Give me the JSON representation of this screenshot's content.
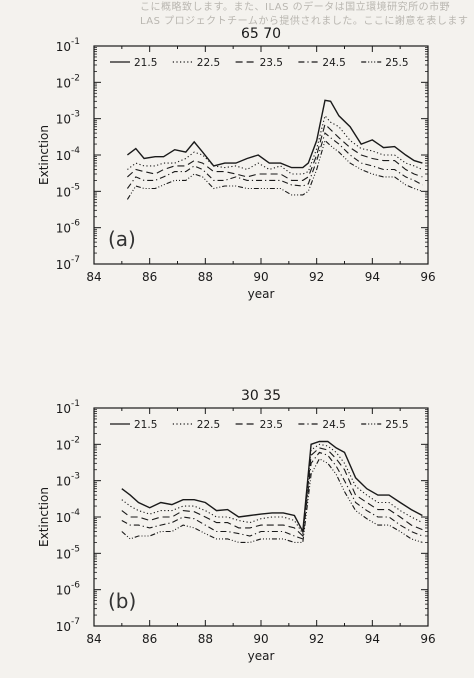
{
  "bleed_text": [
    "こに概略致します。また、ILAS のデータは国立環境研究所の市野",
    "LAS プロジェクトチームから提供されました。ここに謝意を表します"
  ],
  "chart_data": [
    {
      "type": "line",
      "title": "65 70",
      "annotation": "(a)",
      "xlabel": "year",
      "ylabel": "Extinction",
      "xlim": [
        84,
        96
      ],
      "ylim": [
        1e-07,
        0.1
      ],
      "yscale": "log",
      "xticks": [
        "84",
        "86",
        "88",
        "90",
        "92",
        "94",
        "96"
      ],
      "yticks": [
        {
          "base": "10",
          "exp": "-1"
        },
        {
          "base": "10",
          "exp": "-2"
        },
        {
          "base": "10",
          "exp": "-3"
        },
        {
          "base": "10",
          "exp": "-4"
        },
        {
          "base": "10",
          "exp": "-5"
        },
        {
          "base": "10",
          "exp": "-6"
        },
        {
          "base": "10",
          "exp": "-7"
        }
      ],
      "legend_position": "top",
      "x": [
        85.2,
        85.5,
        85.8,
        86.2,
        86.5,
        86.9,
        87.3,
        87.6,
        87.9,
        88.3,
        88.7,
        89.1,
        89.5,
        89.9,
        90.3,
        90.7,
        91.1,
        91.5,
        91.7,
        92.0,
        92.3,
        92.5,
        92.8,
        93.2,
        93.6,
        94.0,
        94.4,
        94.8,
        95.2,
        95.5,
        95.8
      ],
      "series": [
        {
          "name": "21.5",
          "dash": "",
          "values": [
            0.0001,
            0.00015,
            8e-05,
            9e-05,
            9e-05,
            0.00014,
            0.00012,
            0.00023,
            0.00012,
            5e-05,
            6e-05,
            6e-05,
            8e-05,
            0.0001,
            6e-05,
            6e-05,
            4.5e-05,
            4.5e-05,
            6e-05,
            0.00025,
            0.0032,
            0.003,
            0.0012,
            0.0006,
            0.0002,
            0.00026,
            0.00016,
            0.00017,
            0.0001,
            7e-05,
            6e-05
          ]
        },
        {
          "name": "22.5",
          "dash": "1.2 2.4",
          "values": [
            4e-05,
            6e-05,
            5e-05,
            5e-05,
            6e-05,
            6e-05,
            8e-05,
            0.00012,
            0.0001,
            5e-05,
            4.5e-05,
            5e-05,
            4e-05,
            6e-05,
            4e-05,
            5e-05,
            3e-05,
            3e-05,
            3.5e-05,
            0.00015,
            0.0012,
            0.0008,
            0.0006,
            0.00025,
            0.00015,
            0.00013,
            0.0001,
            0.0001,
            6e-05,
            5e-05,
            4e-05
          ]
        },
        {
          "name": "23.5",
          "dash": "7 4",
          "values": [
            2.5e-05,
            4e-05,
            3.5e-05,
            3e-05,
            4e-05,
            5e-05,
            5e-05,
            7e-05,
            6e-05,
            3.5e-05,
            3.5e-05,
            3e-05,
            2.5e-05,
            3e-05,
            3e-05,
            3e-05,
            2e-05,
            2e-05,
            2.5e-05,
            0.0001,
            0.0007,
            0.0005,
            0.0003,
            0.00016,
            0.0001,
            8e-05,
            7e-05,
            7e-05,
            4e-05,
            3e-05,
            2.5e-05
          ]
        },
        {
          "name": "24.5",
          "dash": "6 3 1.2 3",
          "values": [
            1.2e-05,
            2.5e-05,
            2e-05,
            2e-05,
            2.5e-05,
            3.5e-05,
            3.5e-05,
            5e-05,
            4e-05,
            2e-05,
            2e-05,
            2.5e-05,
            2e-05,
            2e-05,
            2e-05,
            2e-05,
            1.5e-05,
            1.4e-05,
            1.6e-05,
            7e-05,
            0.0004,
            0.0003,
            0.0002,
            0.0001,
            6e-05,
            5e-05,
            4e-05,
            4e-05,
            2.5e-05,
            2e-05,
            1.5e-05
          ]
        },
        {
          "name": "25.5",
          "dash": "5 2 1 2 1 2 1 2",
          "values": [
            6e-06,
            1.4e-05,
            1.2e-05,
            1.2e-05,
            1.5e-05,
            2e-05,
            2e-05,
            3e-05,
            2.5e-05,
            1.2e-05,
            1.4e-05,
            1.4e-05,
            1.2e-05,
            1.2e-05,
            1.2e-05,
            1.2e-05,
            8e-06,
            8e-06,
            1e-05,
            4e-05,
            0.00025,
            0.00018,
            0.00012,
            6e-05,
            4e-05,
            3e-05,
            2.5e-05,
            2.5e-05,
            1.5e-05,
            1.2e-05,
            1e-05
          ]
        }
      ]
    },
    {
      "type": "line",
      "title": "30 35",
      "annotation": "(b)",
      "xlabel": "year",
      "ylabel": "Extinction",
      "xlim": [
        84,
        96
      ],
      "ylim": [
        1e-07,
        0.1
      ],
      "yscale": "log",
      "xticks": [
        "84",
        "86",
        "88",
        "90",
        "92",
        "94",
        "96"
      ],
      "yticks": [
        {
          "base": "10",
          "exp": "-1"
        },
        {
          "base": "10",
          "exp": "-2"
        },
        {
          "base": "10",
          "exp": "-3"
        },
        {
          "base": "10",
          "exp": "-4"
        },
        {
          "base": "10",
          "exp": "-5"
        },
        {
          "base": "10",
          "exp": "-6"
        },
        {
          "base": "10",
          "exp": "-7"
        }
      ],
      "legend_position": "top",
      "x": [
        85.0,
        85.3,
        85.6,
        86.0,
        86.4,
        86.8,
        87.2,
        87.6,
        88.0,
        88.4,
        88.8,
        89.2,
        89.6,
        90.0,
        90.4,
        90.8,
        91.2,
        91.5,
        91.8,
        92.1,
        92.4,
        92.7,
        93.0,
        93.4,
        93.8,
        94.2,
        94.6,
        95.0,
        95.4,
        95.8
      ],
      "series": [
        {
          "name": "21.5",
          "dash": "",
          "values": [
            0.0006,
            0.0004,
            0.00025,
            0.00018,
            0.00025,
            0.00022,
            0.0003,
            0.0003,
            0.00025,
            0.00015,
            0.00016,
            0.0001,
            0.00011,
            0.00012,
            0.00013,
            0.00013,
            0.00011,
            4e-05,
            0.01,
            0.012,
            0.012,
            0.008,
            0.006,
            0.0012,
            0.0006,
            0.0004,
            0.0004,
            0.00025,
            0.00016,
            0.00011
          ]
        },
        {
          "name": "22.5",
          "dash": "1.2 2.4",
          "values": [
            0.0003,
            0.0002,
            0.00015,
            0.00012,
            0.00015,
            0.00015,
            0.0002,
            0.0002,
            0.00015,
            0.0001,
            0.0001,
            8e-05,
            7e-05,
            9e-05,
            0.0001,
            0.0001,
            8e-05,
            3.5e-05,
            0.007,
            0.01,
            0.009,
            0.006,
            0.003,
            0.0007,
            0.0004,
            0.00025,
            0.00025,
            0.00015,
            0.0001,
            7e-05
          ]
        },
        {
          "name": "23.5",
          "dash": "7 4",
          "values": [
            0.00015,
            0.0001,
            0.0001,
            8e-05,
            0.0001,
            0.0001,
            0.00015,
            0.00014,
            0.0001,
            7e-05,
            7e-05,
            5e-05,
            5e-05,
            6e-05,
            6e-05,
            6e-05,
            5e-05,
            3e-05,
            0.005,
            0.008,
            0.007,
            0.004,
            0.002,
            0.0004,
            0.00025,
            0.00016,
            0.00016,
            0.0001,
            6e-05,
            4.5e-05
          ]
        },
        {
          "name": "24.5",
          "dash": "6 3 1.2 3",
          "values": [
            8e-05,
            6e-05,
            6e-05,
            5e-05,
            6e-05,
            7e-05,
            0.0001,
            9e-05,
            6e-05,
            4e-05,
            4e-05,
            3.5e-05,
            3e-05,
            4e-05,
            4e-05,
            4e-05,
            3e-05,
            2.5e-05,
            0.003,
            0.006,
            0.005,
            0.0025,
            0.001,
            0.00025,
            0.00015,
            0.0001,
            0.0001,
            6e-05,
            4e-05,
            3e-05
          ]
        },
        {
          "name": "25.5",
          "dash": "5 2 1 2 1 2 1 2",
          "values": [
            4e-05,
            2.5e-05,
            3e-05,
            3e-05,
            4e-05,
            4e-05,
            6e-05,
            5e-05,
            3.5e-05,
            2.5e-05,
            2.5e-05,
            2e-05,
            2e-05,
            2.5e-05,
            2.5e-05,
            2.5e-05,
            2e-05,
            2e-05,
            0.0015,
            0.004,
            0.003,
            0.0015,
            0.0005,
            0.00015,
            9e-05,
            6e-05,
            6e-05,
            4e-05,
            2.5e-05,
            2e-05
          ]
        }
      ]
    }
  ]
}
